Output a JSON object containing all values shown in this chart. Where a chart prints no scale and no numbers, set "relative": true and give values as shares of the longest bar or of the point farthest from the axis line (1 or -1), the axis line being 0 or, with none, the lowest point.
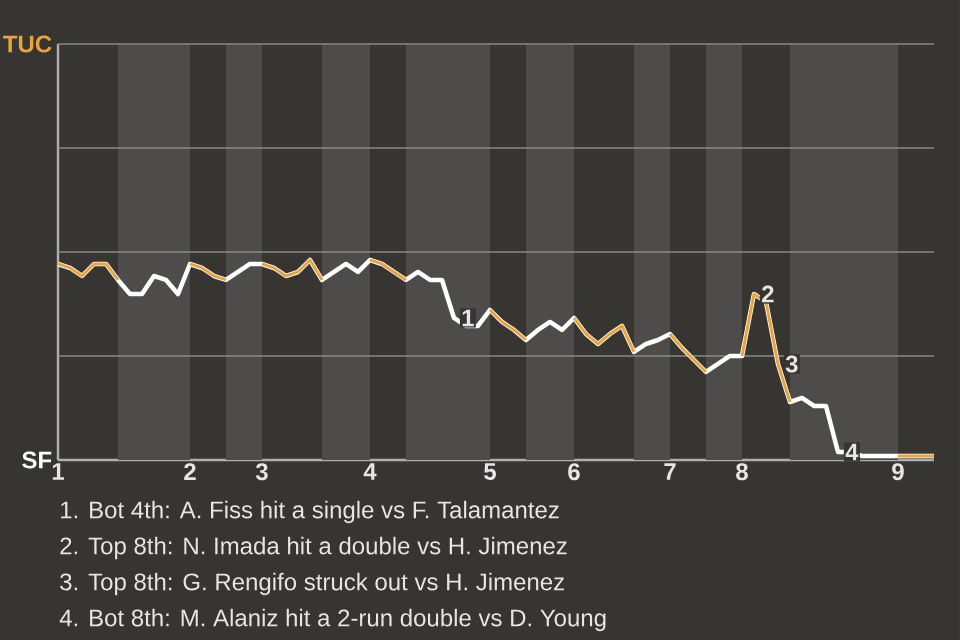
{
  "chart_data": {
    "type": "line",
    "relative": true,
    "categories": [
      "1",
      null,
      null,
      null,
      null,
      null,
      null,
      null,
      null,
      null,
      null,
      "2",
      null,
      null,
      null,
      null,
      null,
      "3",
      null,
      null,
      null,
      null,
      null,
      null,
      null,
      null,
      "4",
      null,
      null,
      null,
      null,
      null,
      null,
      null,
      null,
      null,
      "5",
      null,
      null,
      null,
      null,
      null,
      null,
      "6",
      null,
      null,
      null,
      null,
      null,
      null,
      null,
      "7",
      null,
      null,
      null,
      null,
      null,
      "8",
      null,
      null,
      null,
      null,
      null,
      null,
      null,
      null,
      null,
      null,
      null,
      null,
      "9",
      null,
      null,
      null
    ],
    "series": [
      {
        "color": "#e8a33d",
        "values": [
          0.98,
          0.96,
          0.92,
          0.98,
          0.98,
          0.9,
          null,
          null,
          null,
          null,
          null,
          0.98,
          0.96,
          0.92,
          0.9,
          null,
          null,
          0.98,
          0.96,
          0.92,
          0.94,
          1,
          0.9,
          null,
          null,
          null,
          1,
          0.98,
          0.94,
          0.9,
          null,
          null,
          null,
          null,
          null,
          null,
          0.75,
          0.69,
          0.65,
          0.6,
          null,
          null,
          null,
          0.71,
          0.63,
          0.58,
          0.63,
          0.67,
          0.54,
          null,
          null,
          0.63,
          0.56,
          0.5,
          0.44,
          null,
          null,
          0.52,
          0.83,
          0.79,
          0.48,
          0.29,
          null,
          null,
          null,
          null,
          null,
          null,
          null,
          null,
          0.02,
          0.02,
          0.02,
          0.02
        ]
      },
      {
        "color": "#ffffff",
        "values": [
          0.98,
          0.96,
          0.92,
          0.98,
          0.98,
          0.9,
          0.83,
          0.83,
          0.92,
          0.9,
          0.83,
          0.98,
          0.96,
          0.92,
          0.9,
          0.94,
          0.98,
          0.98,
          0.96,
          0.92,
          0.94,
          1,
          0.9,
          0.94,
          0.98,
          0.94,
          1,
          0.98,
          0.94,
          0.9,
          0.94,
          0.9,
          0.9,
          0.71,
          0.67,
          0.67,
          0.75,
          0.69,
          0.65,
          0.6,
          0.65,
          0.69,
          0.65,
          0.71,
          0.63,
          0.58,
          0.63,
          0.67,
          0.54,
          0.58,
          0.6,
          0.63,
          0.56,
          0.5,
          0.44,
          0.48,
          0.52,
          0.52,
          0.83,
          0.79,
          0.48,
          0.29,
          0.31,
          0.27,
          0.27,
          0.04,
          0.04,
          0.02,
          0.02,
          0.02,
          0.02,
          0.02,
          0.02,
          0.02
        ]
      }
    ],
    "ref_lines": [
      {
        "axis": "y",
        "value": 0.52,
        "color": "#8a8886"
      },
      {
        "axis": "y",
        "value": 1.04,
        "color": "#8a8886"
      },
      {
        "axis": "y",
        "value": 1.56,
        "color": "#8a8886"
      },
      {
        "axis": "y",
        "value": 2.08,
        "color": "#8a8886"
      }
    ],
    "annotations": [
      "TUC",
      "SF",
      {
        "text": "1",
        "y": 0.71
      },
      {
        "text": "2",
        "y": 0.83
      },
      {
        "text": "3",
        "y": 0.48
      },
      {
        "text": "4",
        "y": 0.04
      },
      "1. Bot 4th: A. Fiss hit a single vs F. Talamantez",
      "2. Top 8th: N. Imada hit a double vs H. Jimenez",
      "3. Top 8th: G. Rengifo struck out vs H. Jimenez",
      "4. Bot 8th: M. Alaniz hit a 2-run double vs D. Young"
    ]
  }
}
